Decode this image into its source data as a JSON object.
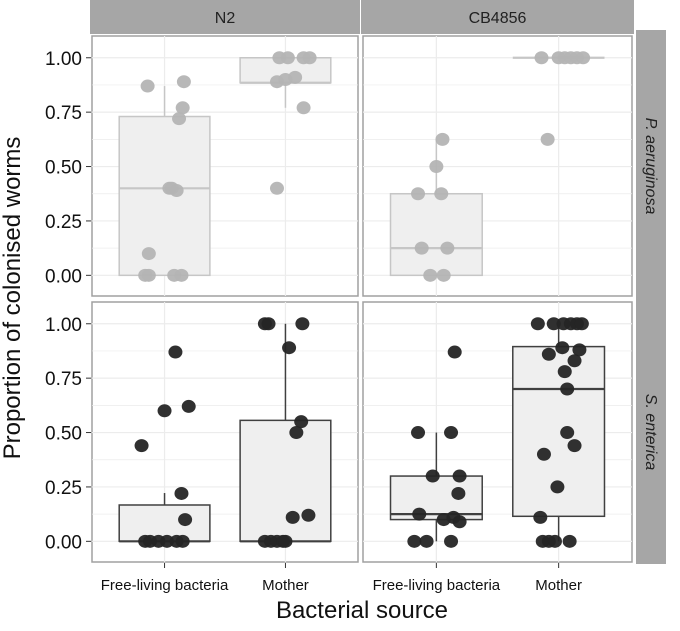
{
  "chart_data": {
    "type": "box",
    "title": "",
    "xlabel": "Bacterial source",
    "ylabel": "Proportion of colonised worms",
    "ylim": [
      -0.095,
      1.1
    ],
    "yticks": [
      0,
      0.25,
      0.5,
      0.75,
      1.0
    ],
    "ytick_labels": [
      "0.00",
      "0.25",
      "0.50",
      "0.75",
      "1.00"
    ],
    "categories": [
      "Free-living bacteria",
      "Mother"
    ],
    "columns": [
      "N2",
      "CB4856"
    ],
    "rows": [
      "P. aeruginosa",
      "S. enterica"
    ],
    "row_colors": {
      "P. aeruginosa": {
        "point": "#b4b4b4",
        "box": "#c6c6c6"
      },
      "S. enterica": {
        "point": "#252525",
        "box": "#404040"
      }
    },
    "panels": [
      {
        "column": "N2",
        "row": "P. aeruginosa",
        "groups": [
          {
            "category": "Free-living bacteria",
            "box": {
              "low": 0,
              "q1": 0,
              "median": 0.4,
              "q3": 0.73,
              "high": 0.87
            },
            "points": [
              [
                0.87,
                0.86
              ],
              [
                0.89,
                1.16
              ],
              [
                0.77,
                1.15
              ],
              [
                0.72,
                1.12
              ],
              [
                0.4,
                1.04
              ],
              [
                0.4,
                1.06
              ],
              [
                0.39,
                1.1
              ],
              [
                0.1,
                0.87
              ],
              [
                0,
                0.84
              ],
              [
                0,
                0.87
              ],
              [
                0,
                1.08
              ],
              [
                0,
                1.14
              ]
            ]
          },
          {
            "category": "Mother",
            "box": {
              "low": 0.77,
              "q1": 0.885,
              "median": 0.885,
              "q3": 1.0,
              "high": 1.0
            },
            "points": [
              [
                1,
                1.95
              ],
              [
                1,
                2.02
              ],
              [
                1,
                2.15
              ],
              [
                1,
                2.2
              ],
              [
                0.89,
                1.93
              ],
              [
                0.9,
                2.0
              ],
              [
                0.91,
                2.08
              ],
              [
                0.77,
                2.15
              ],
              [
                0.4,
                1.93
              ]
            ]
          }
        ]
      },
      {
        "column": "CB4856",
        "row": "P. aeruginosa",
        "groups": [
          {
            "category": "Free-living bacteria",
            "box": {
              "low": 0,
              "q1": 0,
              "median": 0.125,
              "q3": 0.375,
              "high": 0.625
            },
            "points": [
              [
                0.625,
                1.05
              ],
              [
                0.5,
                1.0
              ],
              [
                0.375,
                0.85
              ],
              [
                0.375,
                1.04
              ],
              [
                0.125,
                0.88
              ],
              [
                0.125,
                1.09
              ],
              [
                0,
                0.95
              ],
              [
                0,
                1.06
              ]
            ]
          },
          {
            "category": "Mother",
            "box": {
              "low": 1.0,
              "q1": 1.0,
              "median": 1.0,
              "q3": 1.0,
              "high": 1.0
            },
            "points": [
              [
                1,
                1.86
              ],
              [
                1,
                2.0
              ],
              [
                1,
                2.05
              ],
              [
                1,
                2.1
              ],
              [
                1,
                2.15
              ],
              [
                1,
                2.2
              ],
              [
                0.625,
                1.91
              ]
            ]
          }
        ]
      },
      {
        "column": "N2",
        "row": "S. enterica",
        "groups": [
          {
            "category": "Free-living bacteria",
            "box": {
              "low": 0,
              "q1": 0,
              "median": 0,
              "q3": 0.167,
              "high": 0.222
            },
            "points": [
              [
                0.87,
                1.09
              ],
              [
                0.6,
                1.0
              ],
              [
                0.62,
                1.2
              ],
              [
                0.44,
                0.81
              ],
              [
                0.22,
                1.14
              ],
              [
                0.1,
                1.17
              ],
              [
                0,
                0.84
              ],
              [
                0,
                0.88
              ],
              [
                0,
                0.95
              ],
              [
                0,
                1.02
              ],
              [
                0,
                1.1
              ],
              [
                0,
                1.15
              ]
            ]
          },
          {
            "category": "Mother",
            "box": {
              "low": 0,
              "q1": 0,
              "median": 0,
              "q3": 0.556,
              "high": 1.0
            },
            "points": [
              [
                1,
                1.83
              ],
              [
                1,
                1.86
              ],
              [
                1,
                2.14
              ],
              [
                0.89,
                2.03
              ],
              [
                0.55,
                2.13
              ],
              [
                0.5,
                2.09
              ],
              [
                0.11,
                2.06
              ],
              [
                0.12,
                2.19
              ],
              [
                0,
                1.83
              ],
              [
                0,
                1.88
              ],
              [
                0,
                1.93
              ],
              [
                0,
                1.98
              ],
              [
                0,
                2.0
              ]
            ]
          }
        ]
      },
      {
        "column": "CB4856",
        "row": "S. enterica",
        "groups": [
          {
            "category": "Free-living bacteria",
            "box": {
              "low": 0,
              "q1": 0.1,
              "median": 0.125,
              "q3": 0.3,
              "high": 0.5
            },
            "points": [
              [
                0.87,
                1.15
              ],
              [
                0.5,
                0.85
              ],
              [
                0.5,
                1.12
              ],
              [
                0.3,
                0.97
              ],
              [
                0.3,
                1.19
              ],
              [
                0.22,
                1.18
              ],
              [
                0.125,
                0.86
              ],
              [
                0.1,
                1.06
              ],
              [
                0.11,
                1.14
              ],
              [
                0.09,
                1.19
              ],
              [
                0,
                0.82
              ],
              [
                0,
                0.92
              ],
              [
                0,
                1.12
              ]
            ]
          },
          {
            "category": "Mother",
            "box": {
              "low": 0,
              "q1": 0.115,
              "median": 0.7,
              "q3": 0.895,
              "high": 1.0
            },
            "points": [
              [
                1,
                1.83
              ],
              [
                1,
                1.96
              ],
              [
                1,
                2.04
              ],
              [
                1,
                2.1
              ],
              [
                1,
                2.15
              ],
              [
                1,
                2.19
              ],
              [
                0.89,
                2.03
              ],
              [
                0.88,
                2.17
              ],
              [
                0.86,
                1.92
              ],
              [
                0.83,
                2.13
              ],
              [
                0.78,
                2.05
              ],
              [
                0.7,
                2.07
              ],
              [
                0.5,
                2.07
              ],
              [
                0.44,
                2.13
              ],
              [
                0.4,
                1.88
              ],
              [
                0.25,
                1.99
              ],
              [
                0.11,
                1.85
              ],
              [
                0,
                1.87
              ],
              [
                0,
                1.92
              ],
              [
                0,
                1.97
              ],
              [
                0,
                2.09
              ]
            ]
          }
        ]
      }
    ]
  }
}
